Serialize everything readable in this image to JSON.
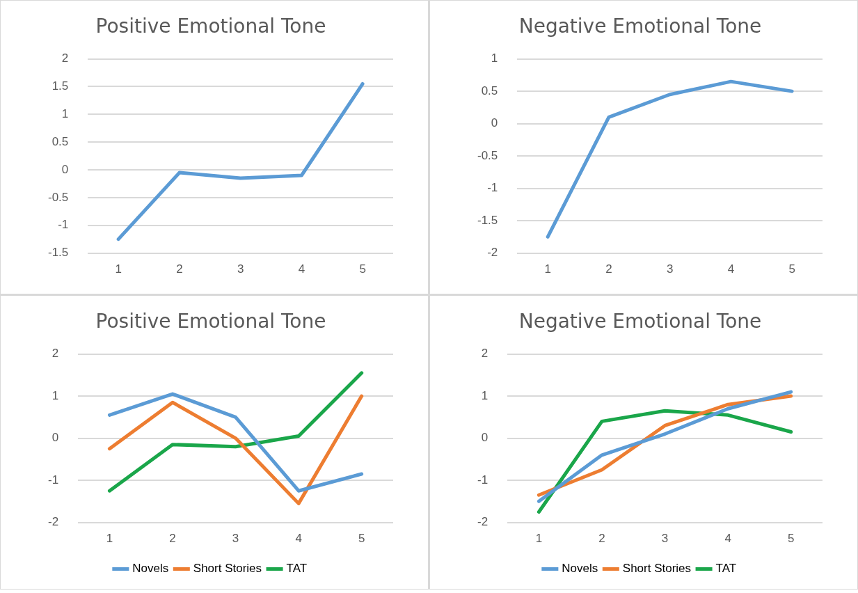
{
  "chart_data": [
    {
      "type": "line",
      "title": "Positive Emotional Tone",
      "categories": [
        "1",
        "2",
        "3",
        "4",
        "5"
      ],
      "series": [
        {
          "color": "#5b9bd5",
          "values": [
            -1.25,
            -0.05,
            -0.15,
            -0.1,
            1.55
          ]
        }
      ],
      "ylim": [
        -1.5,
        2
      ],
      "yticks": [
        -1.5,
        -1,
        -0.5,
        0,
        0.5,
        1,
        1.5,
        2
      ],
      "grid": "y",
      "legend": false,
      "marker": "none",
      "line_style": "solid"
    },
    {
      "type": "line",
      "title": "Negative Emotional Tone",
      "categories": [
        "1",
        "2",
        "3",
        "4",
        "5"
      ],
      "series": [
        {
          "color": "#5b9bd5",
          "values": [
            -1.75,
            0.1,
            0.45,
            0.65,
            0.5
          ]
        }
      ],
      "ylim": [
        -2,
        1
      ],
      "yticks": [
        -2,
        -1.5,
        -1,
        -0.5,
        0,
        0.5,
        1
      ],
      "grid": "y",
      "legend": false,
      "marker": "none",
      "line_style": "solid"
    },
    {
      "type": "line",
      "title": "Positive Emotional Tone",
      "categories": [
        "1",
        "2",
        "3",
        "4",
        "5"
      ],
      "series": [
        {
          "name": "Novels",
          "color": "#5b9bd5",
          "values": [
            0.55,
            1.05,
            0.5,
            -1.25,
            -0.85
          ]
        },
        {
          "name": "Short Stories",
          "color": "#ed7d31",
          "values": [
            -0.25,
            0.85,
            0.0,
            -1.55,
            1.0
          ]
        },
        {
          "name": "TAT",
          "color": "#1aa64a",
          "values": [
            -1.25,
            -0.15,
            -0.2,
            0.05,
            1.55
          ]
        }
      ],
      "ylim": [
        -2,
        2
      ],
      "yticks": [
        -2,
        -1,
        0,
        1,
        2
      ],
      "grid": "y",
      "legend": "bottom",
      "marker": "none",
      "line_style": "solid"
    },
    {
      "type": "line",
      "title": "Negative Emotional Tone",
      "categories": [
        "1",
        "2",
        "3",
        "4",
        "5"
      ],
      "series": [
        {
          "name": "Novels",
          "color": "#5b9bd5",
          "values": [
            -1.5,
            -0.4,
            0.1,
            0.7,
            1.1
          ]
        },
        {
          "name": "Short Stories",
          "color": "#ed7d31",
          "values": [
            -1.35,
            -0.75,
            0.3,
            0.8,
            1.0
          ]
        },
        {
          "name": "TAT",
          "color": "#1aa64a",
          "values": [
            -1.75,
            0.4,
            0.65,
            0.55,
            0.15
          ]
        }
      ],
      "ylim": [
        -2,
        2
      ],
      "yticks": [
        -2,
        -1,
        0,
        1,
        2
      ],
      "grid": "y",
      "legend": "bottom",
      "marker": "none",
      "line_style": "solid"
    }
  ]
}
